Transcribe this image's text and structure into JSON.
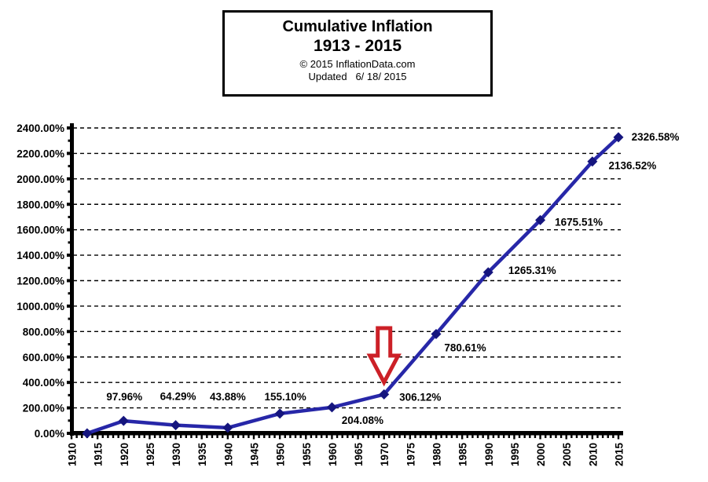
{
  "title_box": {
    "line1": "Cumulative Inflation",
    "line2": "1913 - 2015",
    "copyright": "© 2015 InflationData.com",
    "updated": "Updated   6/ 18/ 2015"
  },
  "chart_data": {
    "type": "line",
    "title": "Cumulative Inflation 1913 - 2015",
    "xlabel": "",
    "ylabel": "",
    "xlim": [
      1910,
      2015
    ],
    "ylim": [
      0,
      2400
    ],
    "grid": "horizontal-dashed",
    "legend": "none",
    "line_color": "#2727a8",
    "marker_color": "#15157e",
    "marker_shape": "diamond",
    "text_color": "#000000",
    "points": [
      {
        "year": 1913,
        "value": 0.0,
        "label": ""
      },
      {
        "year": 1920,
        "value": 97.96,
        "label": "97.96%"
      },
      {
        "year": 1930,
        "value": 64.29,
        "label": "64.29%"
      },
      {
        "year": 1940,
        "value": 43.88,
        "label": "43.88%"
      },
      {
        "year": 1950,
        "value": 155.1,
        "label": "155.10%"
      },
      {
        "year": 1960,
        "value": 204.08,
        "label": "204.08%"
      },
      {
        "year": 1970,
        "value": 306.12,
        "label": "306.12%"
      },
      {
        "year": 1980,
        "value": 780.61,
        "label": "780.61%"
      },
      {
        "year": 1990,
        "value": 1265.31,
        "label": "1265.31%"
      },
      {
        "year": 2000,
        "value": 1675.51,
        "label": "1675.51%"
      },
      {
        "year": 2010,
        "value": 2136.52,
        "label": "2136.52%"
      },
      {
        "year": 2015,
        "value": 2326.58,
        "label": "2326.58%"
      }
    ],
    "y_ticks": [
      {
        "value": 0,
        "label": "0.00%"
      },
      {
        "value": 200,
        "label": "200.00%"
      },
      {
        "value": 400,
        "label": "400.00%"
      },
      {
        "value": 600,
        "label": "600.00%"
      },
      {
        "value": 800,
        "label": "800.00%"
      },
      {
        "value": 1000,
        "label": "1000.00%"
      },
      {
        "value": 1200,
        "label": "1200.00%"
      },
      {
        "value": 1400,
        "label": "1400.00%"
      },
      {
        "value": 1600,
        "label": "1600.00%"
      },
      {
        "value": 1800,
        "label": "1800.00%"
      },
      {
        "value": 2000,
        "label": "2000.00%"
      },
      {
        "value": 2200,
        "label": "2200.00%"
      },
      {
        "value": 2400,
        "label": "2400.00%"
      }
    ],
    "x_ticks": [
      1910,
      1915,
      1920,
      1925,
      1930,
      1935,
      1940,
      1945,
      1950,
      1955,
      1960,
      1965,
      1970,
      1975,
      1980,
      1985,
      1990,
      1995,
      2000,
      2005,
      2010,
      2015
    ],
    "annotation": {
      "type": "down-arrow",
      "target_year": 1970,
      "target_label": "306.12%",
      "color": "#cc2027",
      "fill": "#ffffff"
    }
  }
}
